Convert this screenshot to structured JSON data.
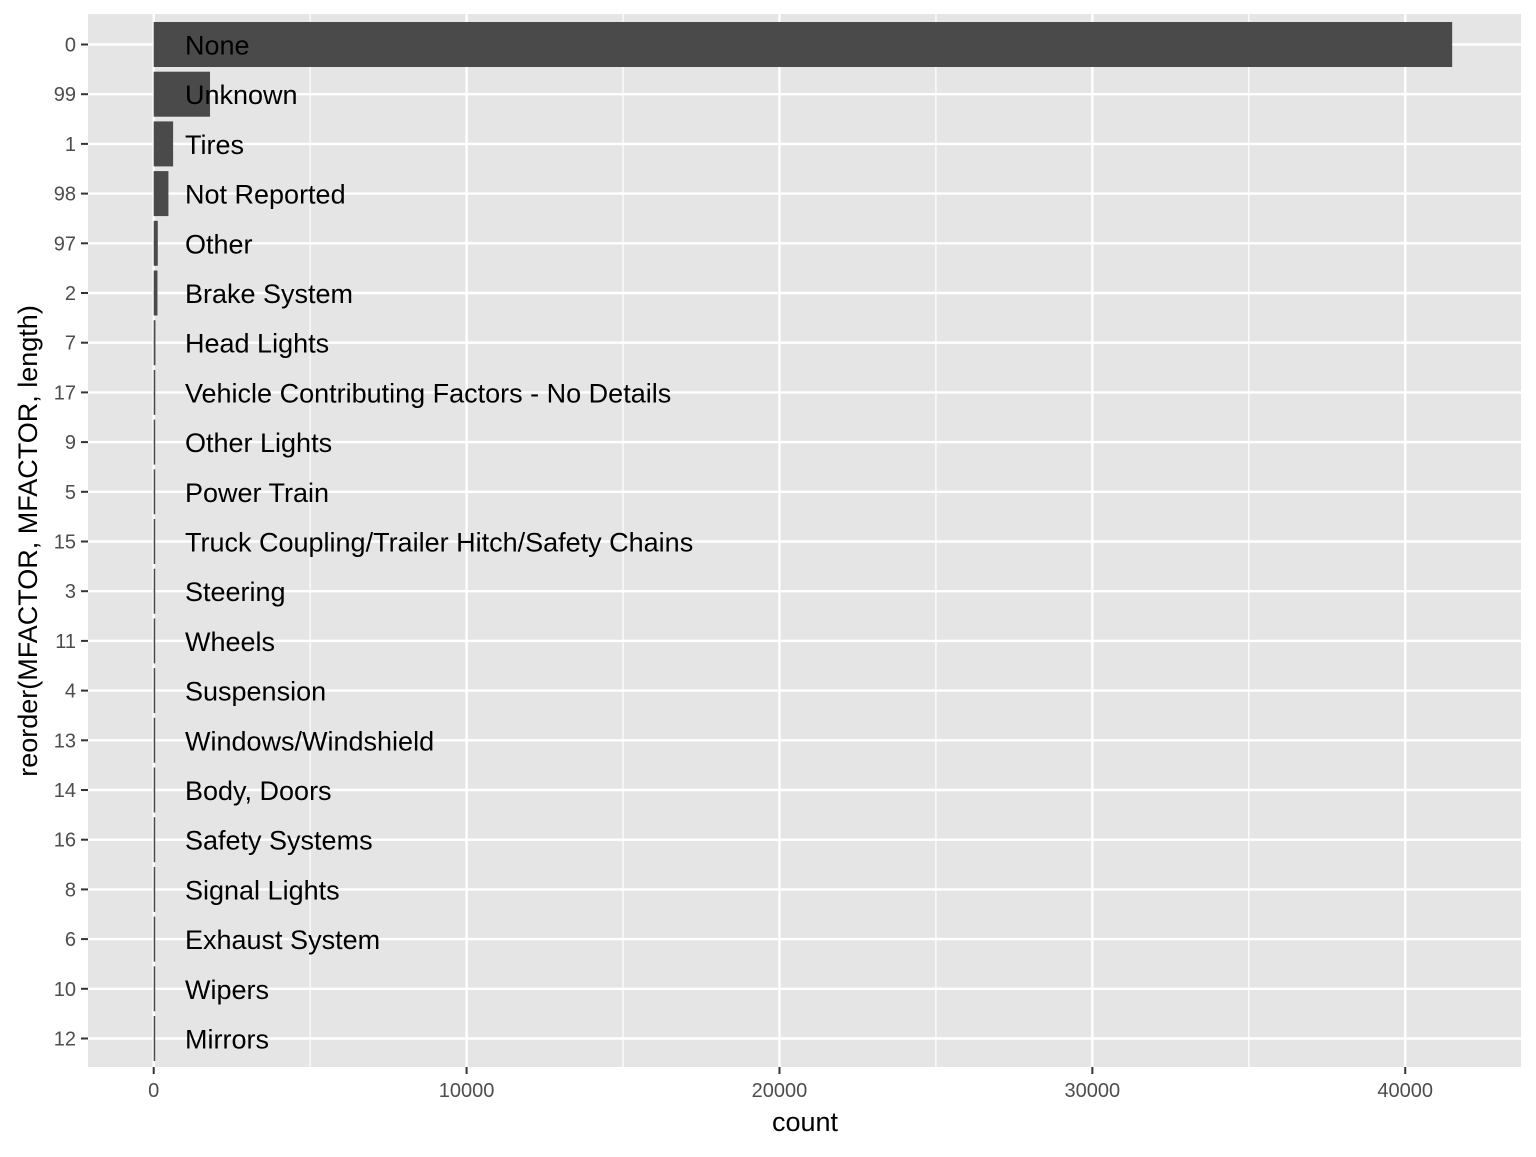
{
  "chart_data": {
    "type": "bar",
    "orientation": "horizontal",
    "xlabel": "count",
    "ylabel": "reorder(MFACTOR, MFACTOR, length)",
    "xlim": [
      -2100,
      43700
    ],
    "x_ticks": [
      0,
      10000,
      20000,
      30000,
      40000
    ],
    "x_minor_ticks": [
      5000,
      15000,
      25000,
      35000
    ],
    "grid": true,
    "categories": [
      "0",
      "99",
      "1",
      "98",
      "97",
      "2",
      "7",
      "17",
      "9",
      "5",
      "15",
      "3",
      "11",
      "4",
      "13",
      "14",
      "16",
      "8",
      "6",
      "10",
      "12"
    ],
    "labels": [
      "None",
      "Unknown",
      "Tires",
      "Not Reported",
      "Other",
      "Brake System",
      "Head Lights",
      "Vehicle Contributing Factors - No Details",
      "Other Lights",
      "Power Train",
      "Truck Coupling/Trailer Hitch/Safety Chains",
      "Steering",
      "Wheels",
      "Suspension",
      "Windows/Windshield",
      "Body, Doors",
      "Safety Systems",
      "Signal Lights",
      "Exhaust System",
      "Wipers",
      "Mirrors"
    ],
    "values": [
      41500,
      1800,
      620,
      470,
      130,
      120,
      55,
      50,
      45,
      40,
      30,
      25,
      22,
      20,
      18,
      15,
      12,
      10,
      8,
      6,
      5
    ],
    "colors": {
      "panel": "#e5e5e5",
      "grid": "#ffffff",
      "bar": "#4a4a4a",
      "axis_text": "#4d4d4d",
      "label_text": "#000000"
    }
  }
}
